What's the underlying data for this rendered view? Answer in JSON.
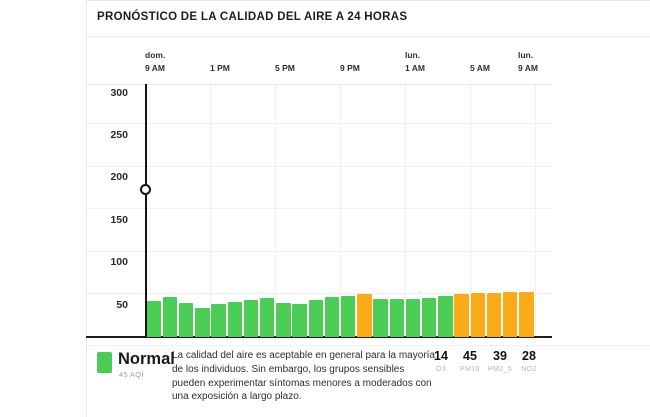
{
  "header": {
    "title": "PRONÓSTICO DE LA CALIDAD DEL AIRE A 24 HORAS"
  },
  "colors": {
    "normal": "#4BCD55",
    "moderado": "#FBAB18",
    "axis": "#1f1f1f"
  },
  "chart_data": {
    "type": "bar",
    "ylabel": "AQI",
    "ylim": [
      0,
      312
    ],
    "y_ticks": [
      300,
      250,
      200,
      150,
      100,
      50
    ],
    "x_ticks": [
      {
        "day": "dom.",
        "time": "9 AM"
      },
      {
        "day": "",
        "time": "1 PM"
      },
      {
        "day": "",
        "time": "5 PM"
      },
      {
        "day": "",
        "time": "9 PM"
      },
      {
        "day": "lun.",
        "time": "1 AM"
      },
      {
        "day": "",
        "time": "5 AM"
      },
      {
        "day": "lun.",
        "time": "9 AM"
      }
    ],
    "now_marker_tick_index": 0,
    "bars": [
      {
        "value": 55,
        "level": "normal"
      },
      {
        "value": 60,
        "level": "normal"
      },
      {
        "value": 52,
        "level": "normal"
      },
      {
        "value": 47,
        "level": "normal"
      },
      {
        "value": 51,
        "level": "normal"
      },
      {
        "value": 54,
        "level": "normal"
      },
      {
        "value": 56,
        "level": "normal"
      },
      {
        "value": 58,
        "level": "normal"
      },
      {
        "value": 52,
        "level": "normal"
      },
      {
        "value": 51,
        "level": "normal"
      },
      {
        "value": 56,
        "level": "normal"
      },
      {
        "value": 60,
        "level": "normal"
      },
      {
        "value": 61,
        "level": "normal"
      },
      {
        "value": 63,
        "level": "moderado"
      },
      {
        "value": 57,
        "level": "normal"
      },
      {
        "value": 57,
        "level": "normal"
      },
      {
        "value": 57,
        "level": "normal"
      },
      {
        "value": 58,
        "level": "normal"
      },
      {
        "value": 61,
        "level": "normal"
      },
      {
        "value": 63,
        "level": "moderado"
      },
      {
        "value": 64,
        "level": "moderado"
      },
      {
        "value": 64,
        "level": "moderado"
      },
      {
        "value": 66,
        "level": "moderado"
      },
      {
        "value": 65,
        "level": "moderado"
      }
    ]
  },
  "legend": {
    "status_label": "Normal",
    "current_aqi": "45 AQI",
    "description": "La calidad del aire es aceptable en general para la mayoría de los individuos. Sin embargo, los grupos sensibles pueden experimentar síntomas menores a moderados con una exposición a largo plazo."
  },
  "pollutants": [
    {
      "value": "14",
      "name": "O3"
    },
    {
      "value": "45",
      "name": "PM10"
    },
    {
      "value": "39",
      "name": "PM2_5"
    },
    {
      "value": "28",
      "name": "NO2"
    }
  ]
}
